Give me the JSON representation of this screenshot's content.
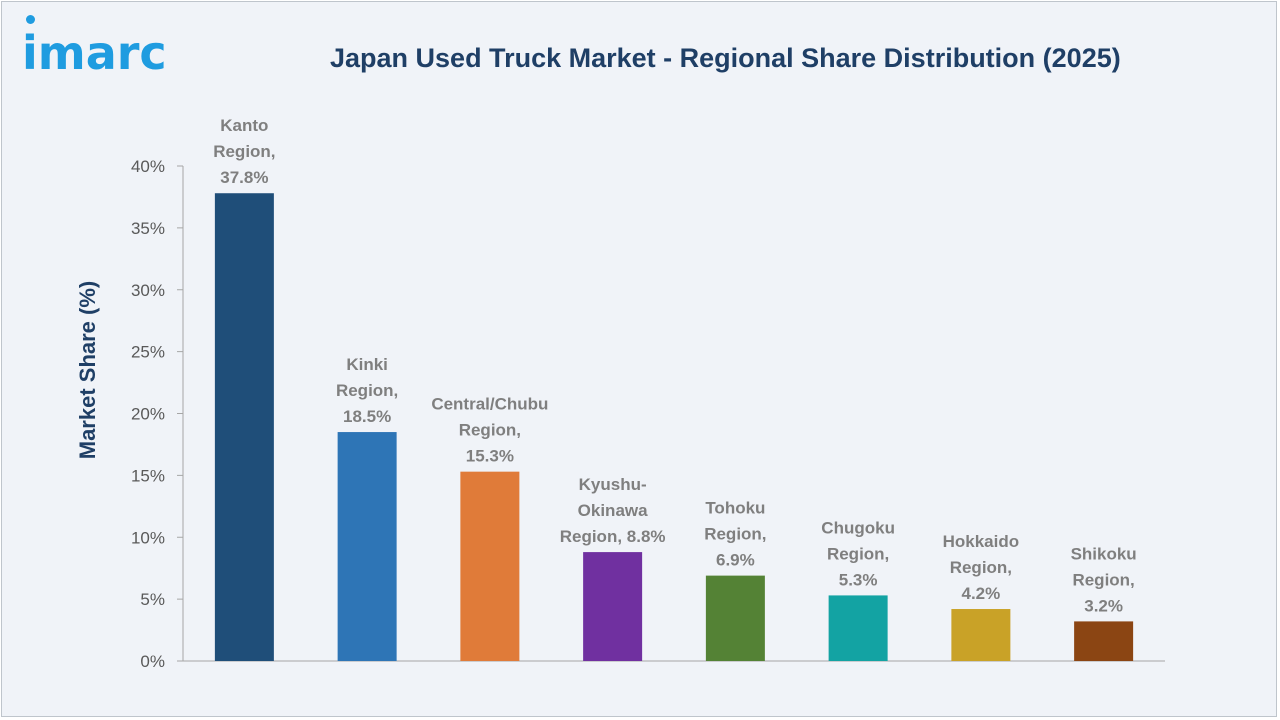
{
  "brand": {
    "logo_text": "imarc"
  },
  "chart_data": {
    "type": "bar",
    "title": "Japan Used Truck Market - Regional Share Distribution (2025)",
    "ylabel": "Market Share (%)",
    "xlabel": "",
    "ylim": [
      0,
      40
    ],
    "yticks": [
      0,
      5,
      10,
      15,
      20,
      25,
      30,
      35,
      40
    ],
    "ytick_labels": [
      "0%",
      "5%",
      "10%",
      "15%",
      "20%",
      "25%",
      "30%",
      "35%",
      "40%"
    ],
    "categories": [
      "Kanto Region",
      "Kinki Region",
      "Central/Chubu Region",
      "Kyushu-Okinawa Region",
      "Tohoku Region",
      "Chugoku Region",
      "Hokkaido Region",
      "Shikoku Region"
    ],
    "values": [
      37.8,
      18.5,
      15.3,
      8.8,
      6.9,
      5.3,
      4.2,
      3.2
    ],
    "data_labels": [
      [
        "Kanto",
        "Region,",
        "37.8%"
      ],
      [
        "Kinki",
        "Region,",
        "18.5%"
      ],
      [
        "Central/Chubu",
        "Region,",
        "15.3%"
      ],
      [
        "Kyushu-",
        "Okinawa",
        "Region, 8.8%"
      ],
      [
        "Tohoku",
        "Region,",
        "6.9%"
      ],
      [
        "Chugoku",
        "Region,",
        "5.3%"
      ],
      [
        "Hokkaido",
        "Region,",
        "4.2%"
      ],
      [
        "Shikoku",
        "Region,",
        "3.2%"
      ]
    ],
    "colors": [
      "#1f4e79",
      "#2e75b6",
      "#e07b39",
      "#7030a0",
      "#548235",
      "#13a3a3",
      "#c9a227",
      "#8b4513"
    ],
    "grid": false,
    "legend": "none"
  }
}
